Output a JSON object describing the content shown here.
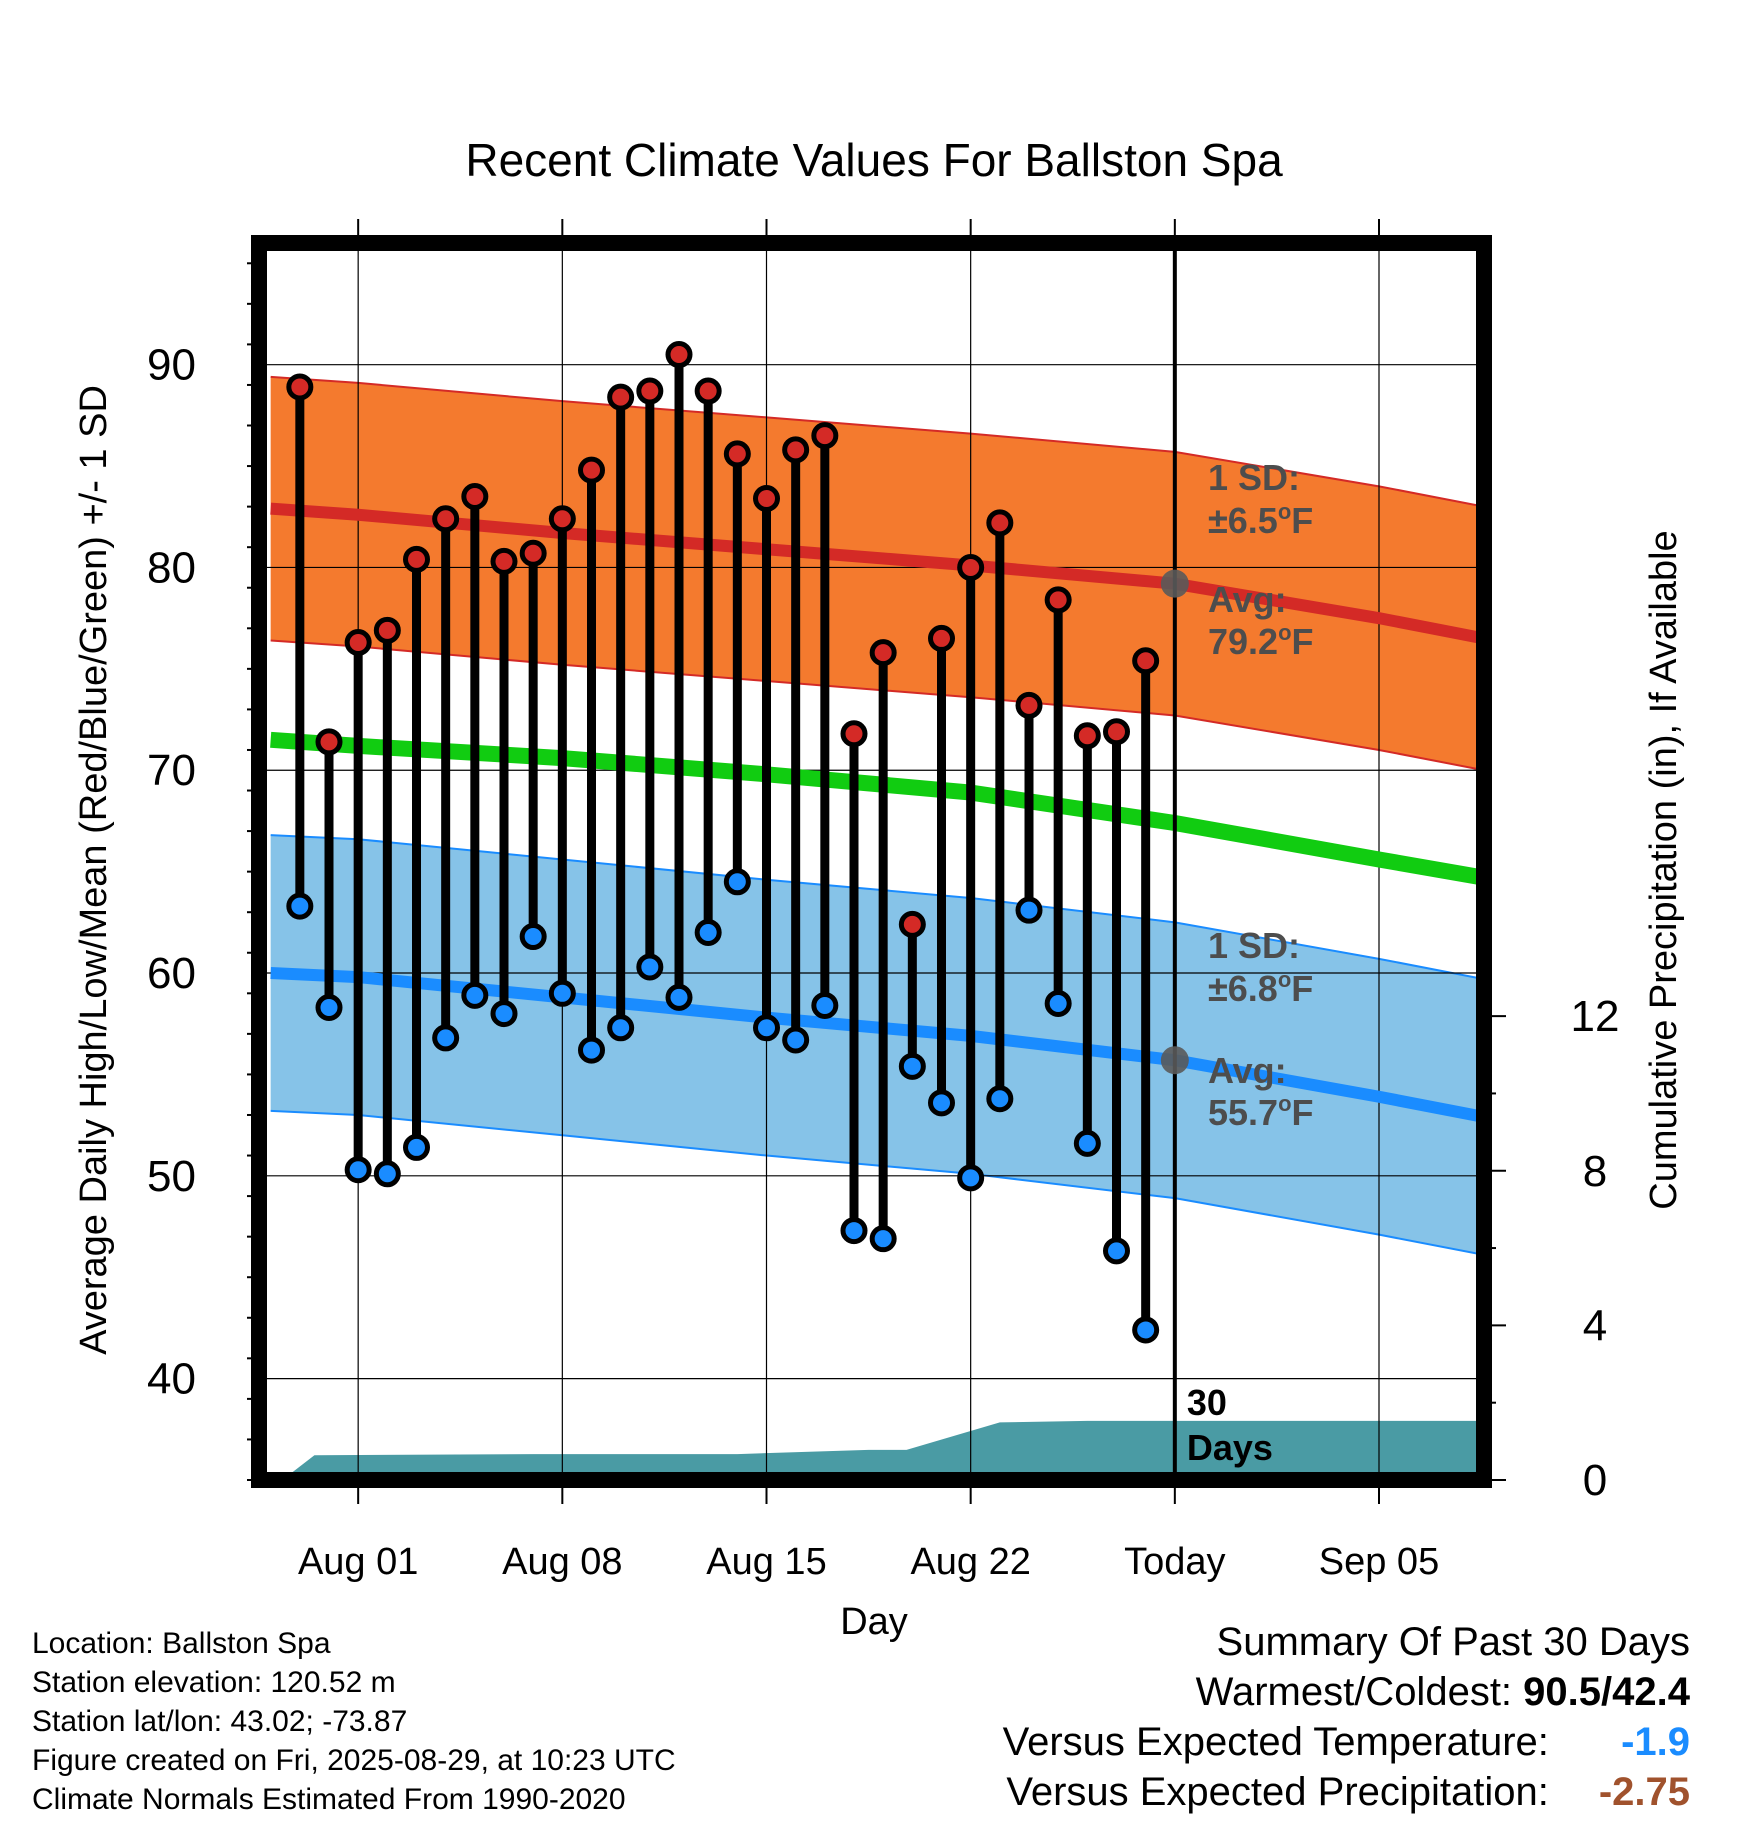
{
  "chart_data": {
    "type": "line",
    "title": "Recent Climate Values For Ballston Spa",
    "xlabel": "Day",
    "ylabel": "Average Daily High/Low/Mean (Red/Blue/Green) +/- 1 SD",
    "ylabel_right": "Cumulative Precipitation (in), If Available",
    "ylim": [
      35,
      96
    ],
    "y_ticks": [
      "40",
      "50",
      "60",
      "70",
      "80",
      "90"
    ],
    "y2lim": [
      0,
      32
    ],
    "y2_ticks": [
      "0",
      "4",
      "8",
      "12"
    ],
    "xlim": [
      -3.4,
      38.6
    ],
    "x_ticks": [
      {
        "day": 0,
        "label": "Aug 01"
      },
      {
        "day": 7,
        "label": "Aug 08"
      },
      {
        "day": 14,
        "label": "Aug 15"
      },
      {
        "day": 21,
        "label": "Aug 22"
      },
      {
        "day": 28,
        "label": "Today"
      },
      {
        "day": 35,
        "label": "Sep 05"
      }
    ],
    "today_day": 28,
    "window_label": [
      "30",
      "Days"
    ],
    "grid": true,
    "daily": {
      "days": [
        -2,
        -1,
        0,
        1,
        2,
        3,
        4,
        5,
        6,
        7,
        8,
        9,
        10,
        11,
        12,
        13,
        14,
        15,
        16,
        17,
        18,
        19,
        20,
        21,
        22,
        23,
        24,
        25,
        26,
        27
      ],
      "highs": [
        88.9,
        71.4,
        76.3,
        76.9,
        80.4,
        82.4,
        83.5,
        80.3,
        80.7,
        82.4,
        84.8,
        88.4,
        88.7,
        90.5,
        88.7,
        85.6,
        83.4,
        85.8,
        86.5,
        71.8,
        75.8,
        62.4,
        76.5,
        80.0,
        82.2,
        73.2,
        78.4,
        71.7,
        71.9,
        75.4
      ],
      "lows": [
        63.3,
        58.3,
        50.3,
        50.1,
        51.4,
        56.8,
        58.9,
        58.0,
        61.8,
        59.0,
        56.2,
        57.3,
        60.3,
        58.8,
        62.0,
        64.5,
        57.3,
        56.7,
        58.4,
        47.3,
        46.9,
        55.4,
        53.6,
        49.9,
        53.8,
        63.1,
        58.5,
        51.6,
        46.3,
        42.4
      ]
    },
    "normal_high": {
      "name": "Avg:",
      "value_label": "79.2°F",
      "sd_label": "±6.5°F",
      "sd_title": "1 SD:",
      "x": [
        -3,
        0,
        7,
        14,
        21,
        28,
        35,
        38.6
      ],
      "mean": [
        82.9,
        82.6,
        81.7,
        80.9,
        80.1,
        79.2,
        77.5,
        76.5
      ],
      "sd": 6.5,
      "color": "#d42a26",
      "band_color": "#f47a2e"
    },
    "normal_low": {
      "name": "Avg:",
      "value_label": "55.7°F",
      "sd_label": "±6.8°F",
      "sd_title": "1 SD:",
      "x": [
        -3,
        0,
        7,
        14,
        21,
        28,
        35,
        38.6
      ],
      "mean": [
        60.0,
        59.8,
        58.8,
        57.8,
        56.9,
        55.7,
        53.9,
        52.9
      ],
      "sd": 6.8,
      "color": "#1a8cff",
      "band_color": "#86c3e8"
    },
    "normal_mean": {
      "x": [
        -3,
        0,
        7,
        14,
        21,
        28,
        35,
        38.6
      ],
      "mean": [
        71.5,
        71.2,
        70.6,
        69.8,
        68.9,
        67.4,
        65.6,
        64.7
      ],
      "color": "#11cc11"
    },
    "precipitation": {
      "x": [
        -2.6,
        -1.5,
        6,
        13,
        17.5,
        18.8,
        22,
        25,
        38.6
      ],
      "y": [
        0,
        0.64,
        0.67,
        0.67,
        0.78,
        0.78,
        1.49,
        1.53,
        1.53
      ],
      "color": "#4a9ba4"
    }
  },
  "footer": {
    "location": "Location: Ballston Spa",
    "elevation": "Station elevation: 120.52 m",
    "latlon": "Station lat/lon: 43.02; -73.87",
    "created": "Figure created on Fri, 2025-08-29, at 10:23 UTC",
    "normals": "Climate Normals Estimated From 1990-2020"
  },
  "summary": {
    "title": "Summary Of Past 30 Days",
    "warmest_label": "Warmest/Coldest:",
    "warmest_value": "90.5/42.4",
    "temp_label": "Versus Expected Temperature:",
    "temp_value": "-1.9",
    "temp_color": "#1a8cff",
    "precip_label": "Versus Expected Precipitation:",
    "precip_value": "-2.75",
    "precip_color": "#a0522d"
  }
}
